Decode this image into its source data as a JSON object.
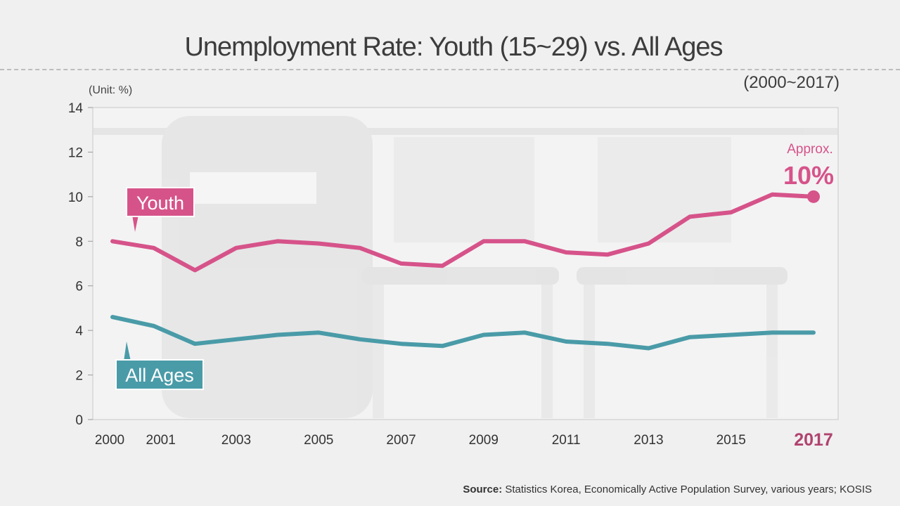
{
  "header": {
    "title": "Unemployment Rate: Youth (15~29) vs. All Ages",
    "period": "(2000~2017)",
    "unit": "(Unit: %)"
  },
  "footer": {
    "source_label": "Source:",
    "source_text": " Statistics Korea, Economically Active Population Survey, various years; KOSIS"
  },
  "chart_data": {
    "type": "line",
    "title": "Unemployment Rate: Youth (15~29) vs. All Ages",
    "ylabel": "(Unit: %)",
    "xlabel": "",
    "ylim": [
      0,
      14
    ],
    "yticks": [
      0,
      2,
      4,
      6,
      8,
      10,
      12,
      14
    ],
    "x": [
      2000,
      2001,
      2002,
      2003,
      2004,
      2005,
      2006,
      2007,
      2008,
      2009,
      2010,
      2011,
      2012,
      2013,
      2014,
      2015,
      2016,
      2017
    ],
    "xtick_labels": [
      "2000",
      "2001",
      "2003",
      "2005",
      "2007",
      "2009",
      "2011",
      "2013",
      "2015",
      "2017"
    ],
    "grid": false,
    "series": [
      {
        "name": "Youth",
        "color": "#d6538a",
        "values": [
          8.0,
          7.7,
          6.7,
          7.7,
          8.0,
          7.9,
          7.7,
          7.0,
          6.9,
          8.0,
          8.0,
          7.5,
          7.4,
          7.9,
          9.1,
          9.3,
          10.1,
          10.0
        ]
      },
      {
        "name": "All Ages",
        "color": "#4a9ba8",
        "values": [
          4.6,
          4.2,
          3.4,
          3.6,
          3.8,
          3.9,
          3.6,
          3.4,
          3.3,
          3.8,
          3.9,
          3.5,
          3.4,
          3.2,
          3.7,
          3.8,
          3.9,
          3.9
        ]
      }
    ],
    "annotations": [
      {
        "text": "Approx.",
        "x": 2017,
        "series": "Youth"
      },
      {
        "text": "10%",
        "x": 2017,
        "series": "Youth"
      }
    ],
    "highlight_tick": "2017",
    "highlight_color": "#b0436f"
  }
}
